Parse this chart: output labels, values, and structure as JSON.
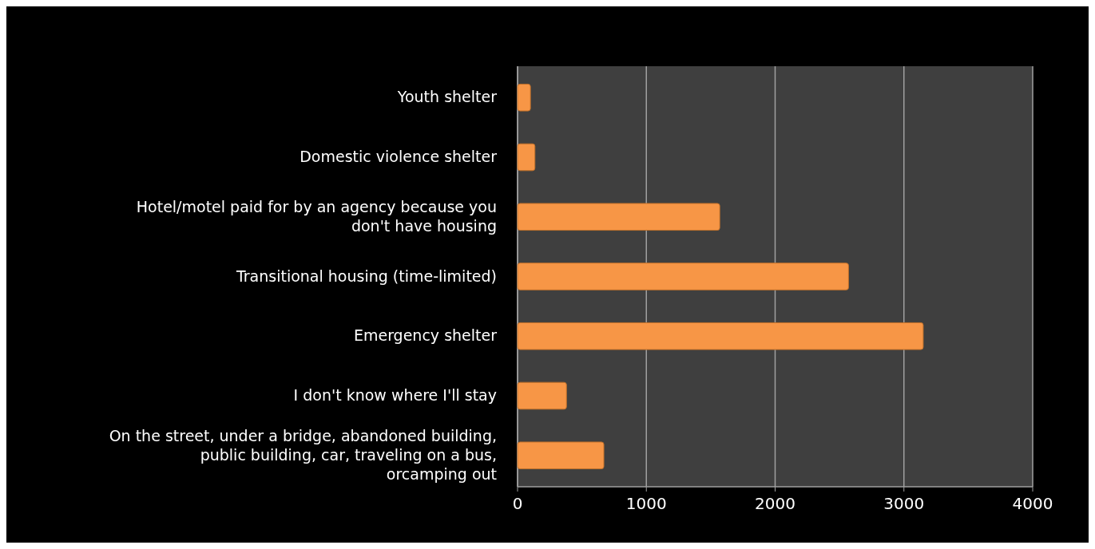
{
  "chart_data": {
    "type": "bar",
    "orientation": "horizontal",
    "categories": [
      "Youth shelter",
      "Domestic violence shelter",
      "Hotel/motel paid for by an agency because you don't have housing",
      "Transitional housing (time-limited)",
      "Emergency shelter",
      "I don't know where I'll stay",
      "On the street, under a bridge, abandoned building, public building, car, traveling on a bus, orcamping out"
    ],
    "values": [
      100,
      135,
      1570,
      2570,
      3150,
      380,
      670
    ],
    "color": "#f79646",
    "xlim": [
      0,
      4000
    ],
    "xticks": [
      0,
      1000,
      2000,
      3000,
      4000
    ],
    "grid": "x"
  }
}
